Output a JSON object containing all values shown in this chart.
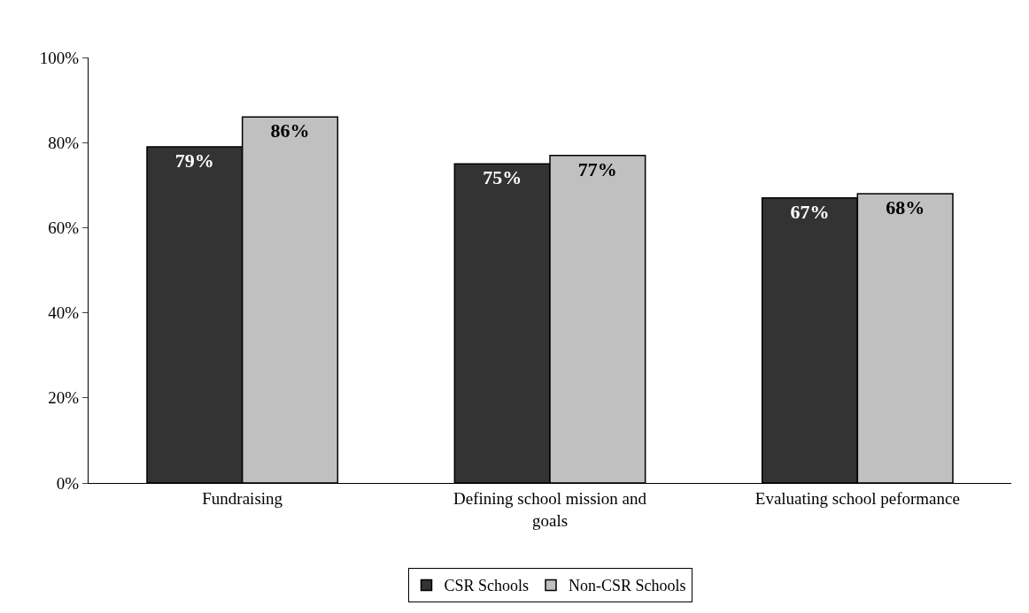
{
  "chart_data": {
    "type": "bar",
    "categories": [
      "Fundraising",
      "Defining school mission and goals",
      "Evaluating school peformance"
    ],
    "series": [
      {
        "name": "CSR Schools",
        "color": "#333333",
        "values": [
          79,
          75,
          67
        ],
        "value_labels": [
          "79%",
          "75%",
          "67%"
        ]
      },
      {
        "name": "Non-CSR Schools",
        "color": "#c0c0c0",
        "values": [
          86,
          77,
          68
        ],
        "value_labels": [
          "86%",
          "77%",
          "68%"
        ]
      }
    ],
    "ylim": [
      0,
      100
    ],
    "yticks": [
      {
        "value": 0,
        "label": "0%"
      },
      {
        "value": 20,
        "label": "20%"
      },
      {
        "value": 40,
        "label": "40%"
      },
      {
        "value": 60,
        "label": "60%"
      },
      {
        "value": 80,
        "label": "80%"
      },
      {
        "value": 100,
        "label": "100%"
      }
    ],
    "grid": false,
    "legend": "bottom"
  }
}
